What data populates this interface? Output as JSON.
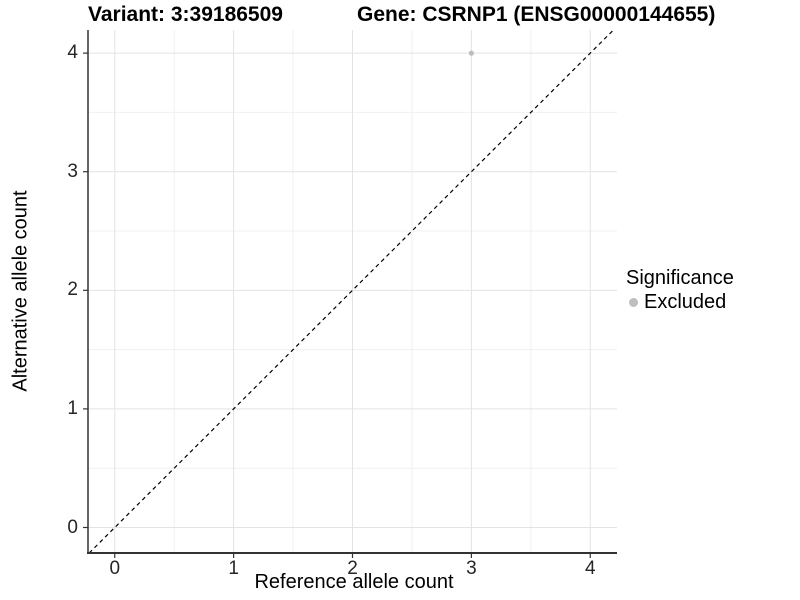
{
  "header": {
    "variant_title": "Variant: 3:39186509",
    "gene_title": "Gene: CSRNP1 (ENSG00000144655)"
  },
  "chart_data": {
    "type": "scatter",
    "xlabel": "Reference allele count",
    "ylabel": "Alternative allele count",
    "xlim": [
      -0.225,
      4.225
    ],
    "ylim": [
      -0.215,
      4.195
    ],
    "x_ticks": [
      0,
      1,
      2,
      3,
      4
    ],
    "y_ticks": [
      0,
      1,
      2,
      3,
      4
    ],
    "grid": "major and minor gridlines, white panel background",
    "series": [
      {
        "name": "Excluded",
        "color": "#bebebe",
        "points": [
          [
            3,
            4
          ]
        ]
      }
    ],
    "reference_line": {
      "kind": "identity y=x",
      "style": "dashed",
      "color": "#000000"
    },
    "legend": {
      "title": "Significance",
      "position": "right",
      "entries": [
        {
          "label": "Excluded",
          "color": "#bebebe"
        }
      ]
    }
  },
  "colors": {
    "background": "#ffffff",
    "grid_major": "#e3e3e3",
    "grid_minor": "#f0f0f0",
    "axis_line": "#333333",
    "tick_label": "#262626",
    "point": "#bebebe"
  }
}
